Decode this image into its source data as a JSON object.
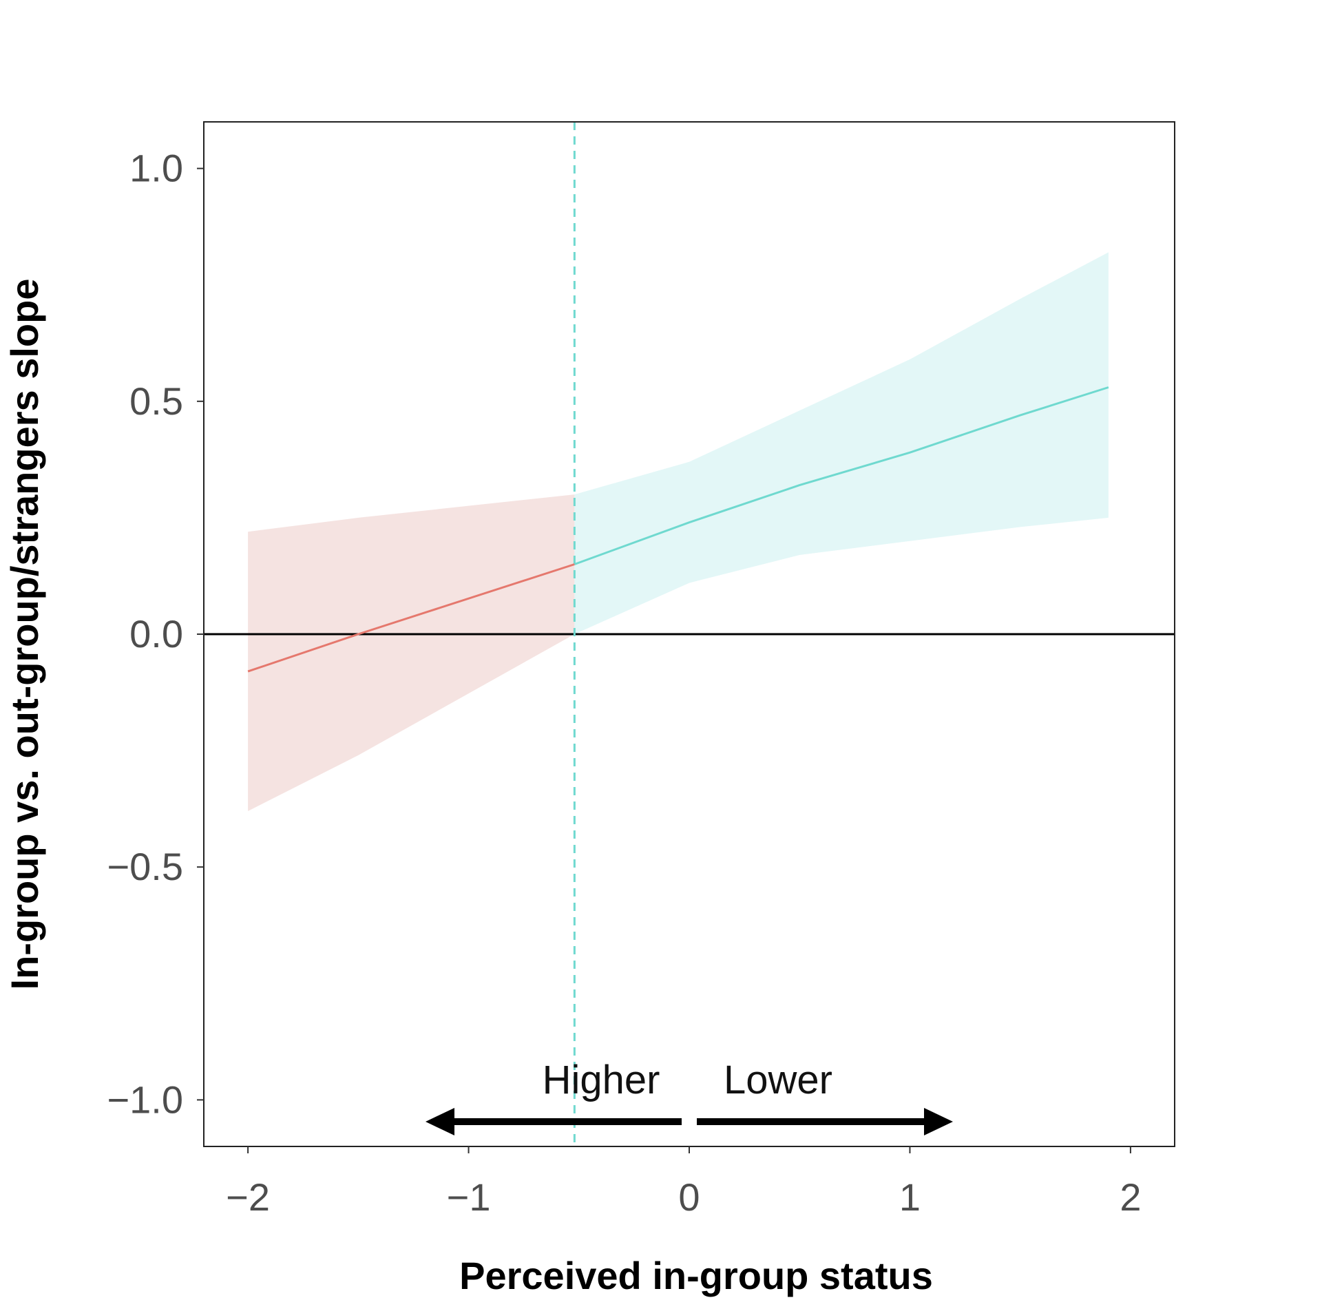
{
  "chart_data": {
    "type": "line",
    "xlabel": "Perceived in-group status",
    "ylabel": "In-group vs. out-group/strangers slope",
    "xlim": [
      -2.2,
      2.2
    ],
    "ylim": [
      -1.1,
      1.1
    ],
    "x_ticks": [
      -2,
      -1,
      0,
      1,
      2
    ],
    "x_tick_labels": [
      "−2",
      "−1",
      "0",
      "1",
      "2"
    ],
    "y_ticks": [
      -1.0,
      -0.5,
      0.0,
      0.5,
      1.0
    ],
    "y_tick_labels": [
      "−1.0",
      "−0.5",
      "0.0",
      "0.5",
      "1.0"
    ],
    "grid": false,
    "reference_lines": {
      "horizontal_y": 0.0,
      "vertical_x": -0.52,
      "vertical_color": "#6fd9cf"
    },
    "series": [
      {
        "color": "#e5786d",
        "band_color": "#f5e3e1",
        "x": [
          -2.0,
          -1.5,
          -0.52
        ],
        "y": [
          -0.08,
          0.0,
          0.15
        ],
        "lower": [
          -0.38,
          -0.26,
          0.0
        ],
        "upper": [
          0.22,
          0.25,
          0.3
        ]
      },
      {
        "color": "#6fd9cf",
        "band_color": "#e3f7f7",
        "x": [
          -0.52,
          0.0,
          0.5,
          1.0,
          1.5,
          1.9
        ],
        "y": [
          0.15,
          0.24,
          0.32,
          0.39,
          0.47,
          0.53
        ],
        "lower": [
          0.0,
          0.11,
          0.17,
          0.2,
          0.23,
          0.25
        ],
        "upper": [
          0.3,
          0.37,
          0.48,
          0.59,
          0.72,
          0.82
        ]
      }
    ],
    "annotations": [
      {
        "text": "Higher",
        "direction": "left"
      },
      {
        "text": "Lower",
        "direction": "right"
      }
    ]
  }
}
